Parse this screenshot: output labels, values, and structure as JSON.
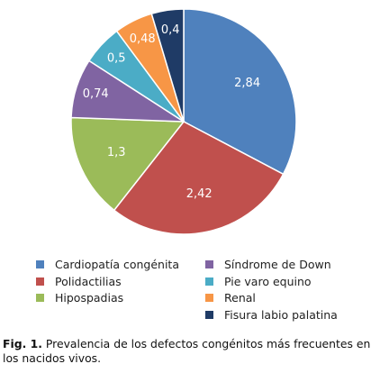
{
  "chart_data": {
    "type": "pie",
    "categories": [
      "Cardiopatía congénita",
      "Polidactilias",
      "Hipospadias",
      "Síndrome de Down",
      "Pie varo equino",
      "Renal",
      "Fisura labio palatina"
    ],
    "values": [
      2.84,
      2.42,
      1.3,
      0.74,
      0.5,
      0.48,
      0.4
    ],
    "data_labels": [
      "2,84",
      "2,42",
      "1,3",
      "0,74",
      "0,5",
      "0,48",
      "0,4"
    ],
    "colors": [
      "#4F81BD",
      "#C0504D",
      "#9BBB59",
      "#8064A2",
      "#4BACC6",
      "#F79646",
      "#1F3B66"
    ],
    "legend_placement": "bottom",
    "start_angle_deg": 0,
    "direction": "clockwise"
  },
  "caption": {
    "label": "Fig. 1.",
    "text": " Prevalencia de los defectos congénitos más frecuentes en los nacidos vivos."
  }
}
